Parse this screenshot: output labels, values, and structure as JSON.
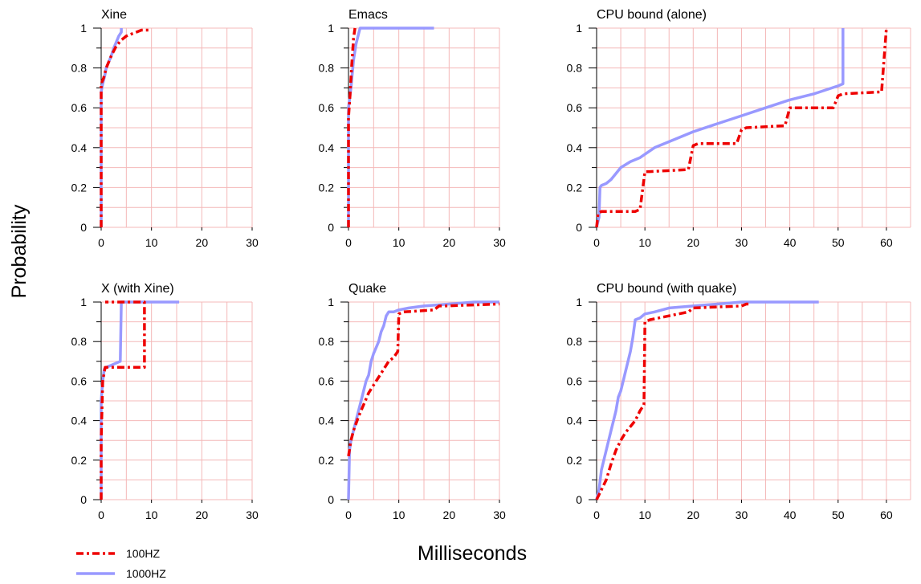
{
  "figure": {
    "ylabel": "Probability",
    "xlabel": "Milliseconds",
    "legend": [
      {
        "name": "100HZ",
        "color": "#ee0000",
        "style": "dash-dot"
      },
      {
        "name": "1000HZ",
        "color": "#9999ff",
        "style": "solid"
      }
    ],
    "grid_color": "#f4b8b8"
  },
  "chart_data": [
    {
      "type": "line",
      "title": "Xine",
      "xlim": [
        0,
        30
      ],
      "ylim": [
        0,
        1
      ],
      "xticks": [
        0,
        10,
        20,
        30
      ],
      "yticks": [
        0,
        0.2,
        0.4,
        0.6,
        0.8,
        1
      ],
      "series": [
        {
          "name": "100HZ",
          "points": [
            [
              0,
              0
            ],
            [
              0,
              0.72
            ],
            [
              0.5,
              0.75
            ],
            [
              1,
              0.8
            ],
            [
              2,
              0.86
            ],
            [
              3,
              0.91
            ],
            [
              4,
              0.94
            ],
            [
              5,
              0.96
            ],
            [
              6,
              0.97
            ],
            [
              7,
              0.98
            ],
            [
              8,
              0.99
            ],
            [
              9.5,
              0.99
            ],
            [
              9.8,
              1
            ]
          ]
        },
        {
          "name": "1000HZ",
          "points": [
            [
              0,
              0
            ],
            [
              0,
              0.68
            ],
            [
              0.3,
              0.72
            ],
            [
              0.7,
              0.76
            ],
            [
              1,
              0.8
            ],
            [
              1.5,
              0.83
            ],
            [
              2,
              0.86
            ],
            [
              2.5,
              0.9
            ],
            [
              3,
              0.93
            ],
            [
              3.5,
              0.96
            ],
            [
              4,
              0.98
            ],
            [
              4,
              1
            ]
          ]
        }
      ]
    },
    {
      "type": "line",
      "title": "Emacs",
      "xlim": [
        0,
        30
      ],
      "ylim": [
        0,
        1
      ],
      "xticks": [
        0,
        10,
        20,
        30
      ],
      "yticks": [
        0,
        0.2,
        0.4,
        0.6,
        0.8,
        1
      ],
      "series": [
        {
          "name": "100HZ",
          "points": [
            [
              0,
              0
            ],
            [
              0,
              0.55
            ],
            [
              0.3,
              0.66
            ],
            [
              0.6,
              0.8
            ],
            [
              1,
              0.95
            ],
            [
              1.3,
              1
            ]
          ]
        },
        {
          "name": "1000HZ",
          "points": [
            [
              0,
              0
            ],
            [
              0,
              0.6
            ],
            [
              0.5,
              0.7
            ],
            [
              1,
              0.84
            ],
            [
              1.5,
              0.92
            ],
            [
              2,
              0.97
            ],
            [
              2.3,
              1
            ],
            [
              17,
              1
            ]
          ]
        }
      ]
    },
    {
      "type": "line",
      "title": "CPU bound (alone)",
      "xlim": [
        0,
        65
      ],
      "ylim": [
        0,
        1
      ],
      "xticks": [
        0,
        10,
        20,
        30,
        40,
        50,
        60
      ],
      "yticks": [
        0,
        0.2,
        0.4,
        0.6,
        0.8,
        1
      ],
      "series": [
        {
          "name": "100HZ",
          "points": [
            [
              0,
              0
            ],
            [
              0.3,
              0.07
            ],
            [
              1,
              0.08
            ],
            [
              8,
              0.08
            ],
            [
              9,
              0.09
            ],
            [
              10,
              0.28
            ],
            [
              11,
              0.28
            ],
            [
              19,
              0.29
            ],
            [
              20,
              0.41
            ],
            [
              21,
              0.42
            ],
            [
              29,
              0.42
            ],
            [
              30,
              0.49
            ],
            [
              31,
              0.5
            ],
            [
              39,
              0.51
            ],
            [
              40,
              0.6
            ],
            [
              41,
              0.6
            ],
            [
              49,
              0.6
            ],
            [
              50,
              0.66
            ],
            [
              51,
              0.67
            ],
            [
              59,
              0.68
            ],
            [
              60,
              1
            ]
          ]
        },
        {
          "name": "1000HZ",
          "points": [
            [
              0,
              0
            ],
            [
              0.5,
              0.05
            ],
            [
              0.7,
              0.2
            ],
            [
              1,
              0.21
            ],
            [
              2,
              0.22
            ],
            [
              3,
              0.24
            ],
            [
              4,
              0.27
            ],
            [
              5,
              0.3
            ],
            [
              7,
              0.33
            ],
            [
              9,
              0.35
            ],
            [
              12,
              0.4
            ],
            [
              15,
              0.43
            ],
            [
              20,
              0.48
            ],
            [
              25,
              0.52
            ],
            [
              30,
              0.56
            ],
            [
              35,
              0.6
            ],
            [
              40,
              0.64
            ],
            [
              45,
              0.67
            ],
            [
              50,
              0.71
            ],
            [
              51,
              0.72
            ],
            [
              51,
              1
            ]
          ]
        }
      ]
    },
    {
      "type": "line",
      "title": "X (with Xine)",
      "xlim": [
        0,
        30
      ],
      "ylim": [
        0,
        1
      ],
      "xticks": [
        0,
        10,
        20,
        30
      ],
      "yticks": [
        0,
        0.2,
        0.4,
        0.6,
        0.8,
        1
      ],
      "series": [
        {
          "name": "100HZ",
          "points": [
            [
              0,
              0
            ],
            [
              0,
              0.3
            ],
            [
              0.3,
              0.6
            ],
            [
              0.8,
              0.67
            ],
            [
              2,
              0.67
            ],
            [
              8.6,
              0.67
            ],
            [
              8.6,
              1
            ],
            [
              0.8,
              1
            ]
          ]
        },
        {
          "name": "1000HZ",
          "points": [
            [
              0,
              0
            ],
            [
              0,
              0.5
            ],
            [
              0.3,
              0.6
            ],
            [
              0.6,
              0.66
            ],
            [
              1,
              0.67
            ],
            [
              2,
              0.68
            ],
            [
              3.8,
              0.7
            ],
            [
              4,
              1
            ],
            [
              15.5,
              1
            ]
          ]
        }
      ]
    },
    {
      "type": "line",
      "title": "Quake",
      "xlim": [
        0,
        30
      ],
      "ylim": [
        0,
        1
      ],
      "xticks": [
        0,
        10,
        20,
        30
      ],
      "yticks": [
        0,
        0.2,
        0.4,
        0.6,
        0.8,
        1
      ],
      "series": [
        {
          "name": "100HZ",
          "points": [
            [
              0,
              0.22
            ],
            [
              0.5,
              0.3
            ],
            [
              1,
              0.35
            ],
            [
              2,
              0.42
            ],
            [
              3,
              0.48
            ],
            [
              4,
              0.54
            ],
            [
              5,
              0.58
            ],
            [
              6,
              0.62
            ],
            [
              7,
              0.66
            ],
            [
              8,
              0.7
            ],
            [
              9,
              0.72
            ],
            [
              9.8,
              0.75
            ],
            [
              10,
              0.94
            ],
            [
              11,
              0.95
            ],
            [
              17,
              0.96
            ],
            [
              18,
              0.98
            ],
            [
              19,
              0.98
            ],
            [
              30,
              0.99
            ]
          ]
        },
        {
          "name": "1000HZ",
          "points": [
            [
              0,
              0
            ],
            [
              0.2,
              0.25
            ],
            [
              0.5,
              0.3
            ],
            [
              1,
              0.35
            ],
            [
              1.5,
              0.4
            ],
            [
              2,
              0.45
            ],
            [
              2.5,
              0.5
            ],
            [
              3,
              0.55
            ],
            [
              3.5,
              0.6
            ],
            [
              4,
              0.63
            ],
            [
              4.5,
              0.7
            ],
            [
              5,
              0.74
            ],
            [
              5.5,
              0.77
            ],
            [
              6,
              0.8
            ],
            [
              6.5,
              0.85
            ],
            [
              7,
              0.88
            ],
            [
              7.5,
              0.93
            ],
            [
              8,
              0.95
            ],
            [
              9,
              0.95
            ],
            [
              10,
              0.96
            ],
            [
              12,
              0.97
            ],
            [
              15,
              0.98
            ],
            [
              20,
              0.99
            ],
            [
              25,
              1
            ],
            [
              30,
              1
            ]
          ]
        }
      ]
    },
    {
      "type": "line",
      "title": "CPU bound (with quake)",
      "xlim": [
        0,
        65
      ],
      "ylim": [
        0,
        1
      ],
      "xticks": [
        0,
        10,
        20,
        30,
        40,
        50,
        60
      ],
      "yticks": [
        0,
        0.2,
        0.4,
        0.6,
        0.8,
        1
      ],
      "series": [
        {
          "name": "100HZ",
          "points": [
            [
              0,
              0
            ],
            [
              1,
              0.05
            ],
            [
              2,
              0.1
            ],
            [
              3,
              0.18
            ],
            [
              4,
              0.25
            ],
            [
              5,
              0.3
            ],
            [
              6,
              0.34
            ],
            [
              7,
              0.37
            ],
            [
              8,
              0.4
            ],
            [
              9,
              0.45
            ],
            [
              9.8,
              0.48
            ],
            [
              10,
              0.9
            ],
            [
              11,
              0.91
            ],
            [
              15,
              0.93
            ],
            [
              19,
              0.95
            ],
            [
              20,
              0.97
            ],
            [
              30,
              0.98
            ],
            [
              31,
              0.99
            ],
            [
              32,
              0.99
            ]
          ]
        },
        {
          "name": "1000HZ",
          "points": [
            [
              0,
              0
            ],
            [
              0.5,
              0.05
            ],
            [
              1,
              0.15
            ],
            [
              1.5,
              0.2
            ],
            [
              2,
              0.25
            ],
            [
              2.5,
              0.3
            ],
            [
              3,
              0.35
            ],
            [
              3.5,
              0.4
            ],
            [
              4,
              0.45
            ],
            [
              4.5,
              0.52
            ],
            [
              5,
              0.55
            ],
            [
              5.5,
              0.6
            ],
            [
              6,
              0.65
            ],
            [
              6.5,
              0.7
            ],
            [
              7,
              0.75
            ],
            [
              7.5,
              0.82
            ],
            [
              8,
              0.91
            ],
            [
              9,
              0.92
            ],
            [
              10,
              0.94
            ],
            [
              12,
              0.95
            ],
            [
              15,
              0.97
            ],
            [
              20,
              0.98
            ],
            [
              25,
              0.99
            ],
            [
              30,
              1
            ],
            [
              35,
              1
            ],
            [
              40,
              1
            ],
            [
              46,
              1
            ]
          ]
        }
      ]
    }
  ]
}
